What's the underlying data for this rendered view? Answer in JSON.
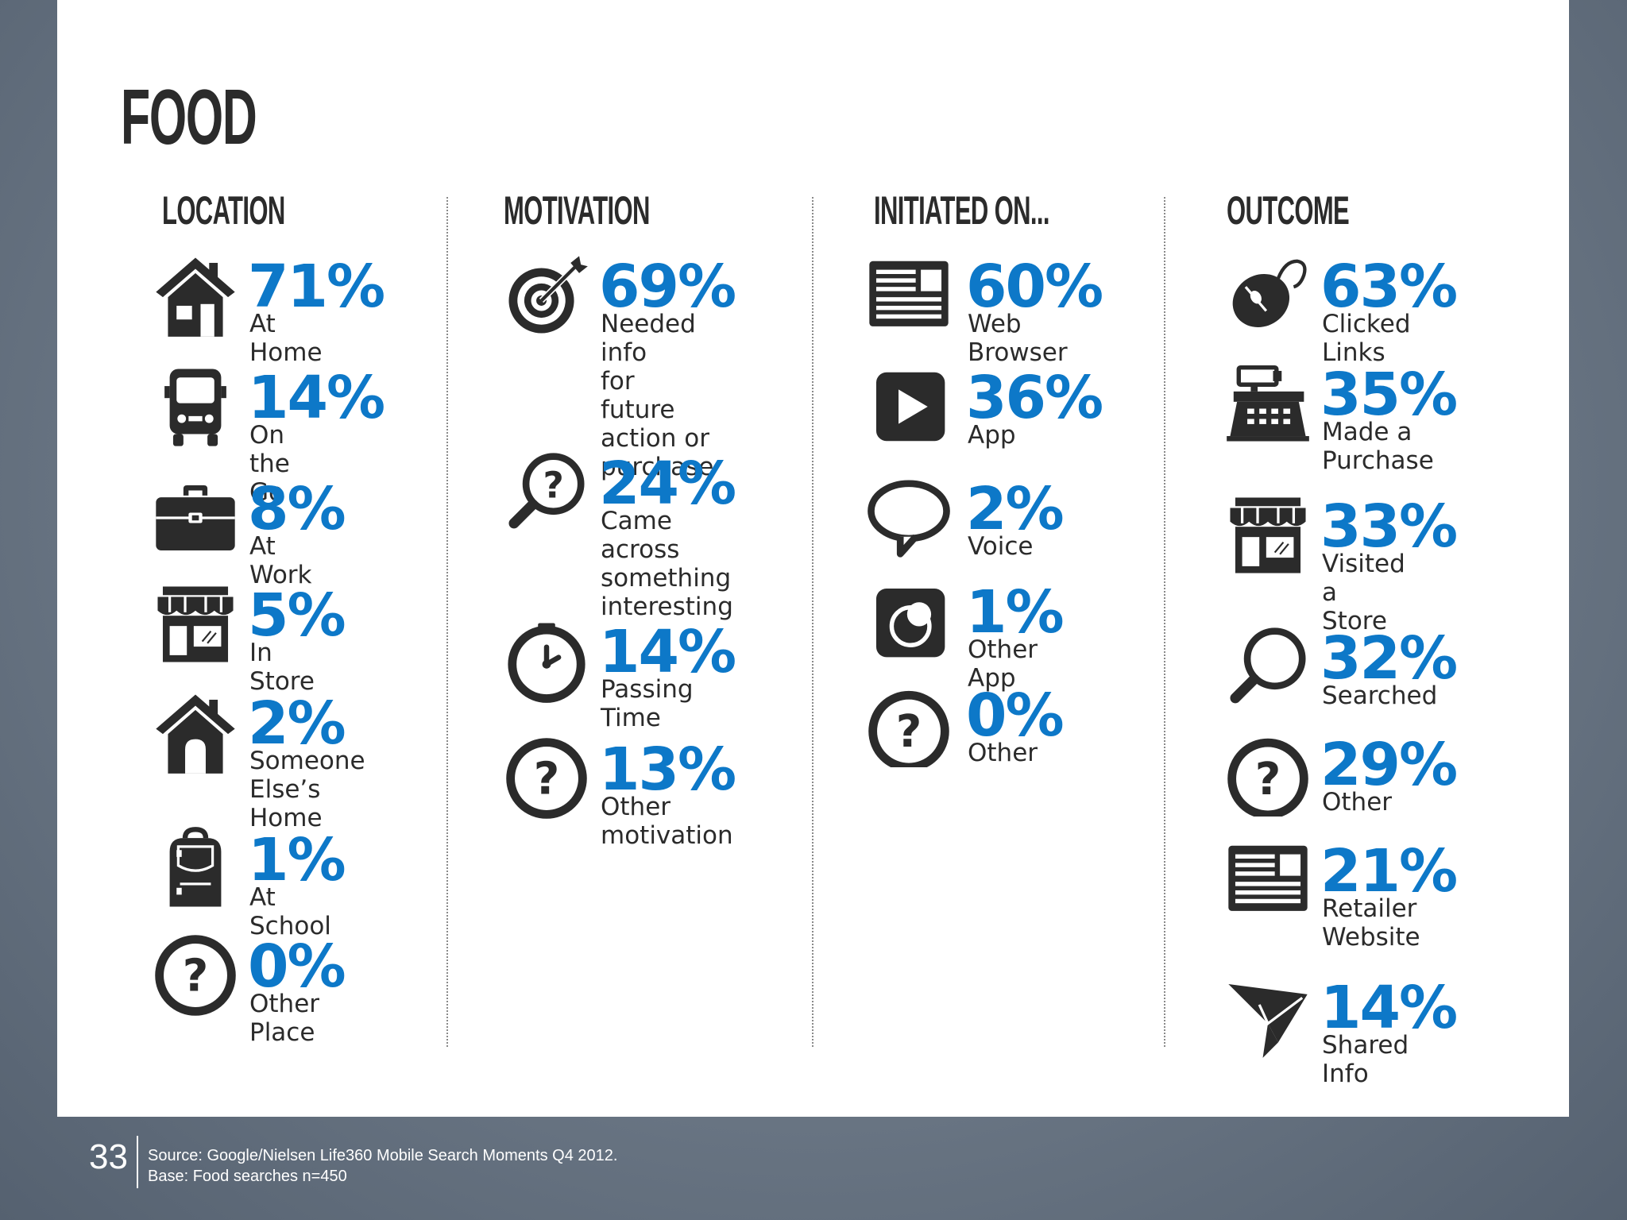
{
  "title": "FOOD",
  "columns": [
    {
      "heading": "LOCATION",
      "items": [
        {
          "pct": "71%",
          "label": "At Home",
          "icon": "house-icon"
        },
        {
          "pct": "14%",
          "label": "On the Go",
          "icon": "bus-icon"
        },
        {
          "pct": "8%",
          "label": "At Work",
          "icon": "briefcase-icon"
        },
        {
          "pct": "5%",
          "label": "In Store",
          "icon": "store-icon"
        },
        {
          "pct": "2%",
          "label": "Someone\nElse’s Home",
          "icon": "home-icon"
        },
        {
          "pct": "1%",
          "label": "At School",
          "icon": "backpack-icon"
        },
        {
          "pct": "0%",
          "label": "Other Place",
          "icon": "question-icon"
        }
      ]
    },
    {
      "heading": "MOTIVATION",
      "items": [
        {
          "pct": "69%",
          "label": "Needed info\nfor future\naction or\npurchase",
          "icon": "target-icon"
        },
        {
          "pct": "24%",
          "label": "Came across\nsomething\ninteresting",
          "icon": "magnifier-question-icon"
        },
        {
          "pct": "14%",
          "label": "Passing Time",
          "icon": "clock-icon"
        },
        {
          "pct": "13%",
          "label": "Other\nmotivation",
          "icon": "question-icon"
        }
      ]
    },
    {
      "heading": "INITIATED ON...",
      "items": [
        {
          "pct": "60%",
          "label": "Web Browser",
          "icon": "browser-icon"
        },
        {
          "pct": "36%",
          "label": "App",
          "icon": "play-icon"
        },
        {
          "pct": "2%",
          "label": "Voice",
          "icon": "speech-bubble-icon"
        },
        {
          "pct": "1%",
          "label": "Other App",
          "icon": "app-icon"
        },
        {
          "pct": "0%",
          "label": "Other",
          "icon": "question-icon"
        }
      ]
    },
    {
      "heading": "OUTCOME",
      "items": [
        {
          "pct": "63%",
          "label": "Clicked Links",
          "icon": "mouse-icon"
        },
        {
          "pct": "35%",
          "label": "Made a\nPurchase",
          "icon": "cash-register-icon"
        },
        {
          "pct": "33%",
          "label": "Visited\na Store",
          "icon": "store-icon"
        },
        {
          "pct": "32%",
          "label": "Searched",
          "icon": "magnifier-icon"
        },
        {
          "pct": "29%",
          "label": "Other",
          "icon": "question-icon"
        },
        {
          "pct": "21%",
          "label": "Retailer\nWebsite",
          "icon": "browser-icon"
        },
        {
          "pct": "14%",
          "label": "Shared Info",
          "icon": "paper-plane-icon"
        }
      ]
    }
  ],
  "footer": {
    "page_number": "33",
    "source": "Source: Google/Nielsen Life360 Mobile Search Moments Q4 2012.",
    "base": "Base: Food searches n=450"
  },
  "colors": {
    "accent": "#0d78c8",
    "text": "#2b2b2b",
    "background": "#707c8a"
  }
}
